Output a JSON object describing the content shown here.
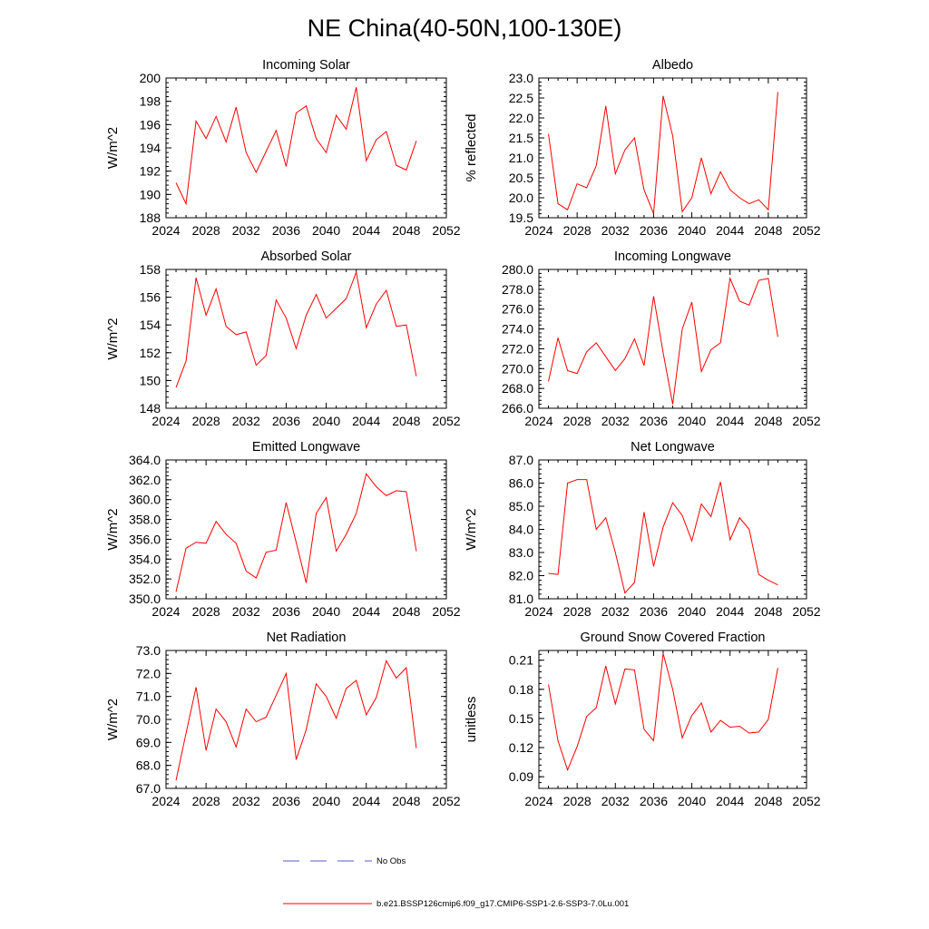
{
  "figure": {
    "title": "NE China(40-50N,100-130E)"
  },
  "chart_data": [
    {
      "type": "line",
      "title": "Incoming Solar",
      "ylabel": "W/m^2",
      "xlim": [
        2024,
        2052
      ],
      "ylim": [
        188,
        200
      ],
      "xticks": [
        "2024",
        "2028",
        "2032",
        "2036",
        "2040",
        "2044",
        "2048",
        "2052"
      ],
      "yticks": [
        "188",
        "190",
        "192",
        "194",
        "196",
        "198",
        "200"
      ],
      "series": [
        {
          "color": "#ff0000",
          "x": [
            2025,
            2026,
            2027,
            2028,
            2029,
            2030,
            2031,
            2032,
            2033,
            2034,
            2035,
            2036,
            2037,
            2038,
            2039,
            2040,
            2041,
            2042,
            2043,
            2044,
            2045,
            2046,
            2047,
            2048,
            2049
          ],
          "y": [
            191.0,
            189.2,
            196.3,
            194.8,
            196.7,
            194.5,
            197.5,
            193.6,
            191.9,
            193.7,
            195.5,
            192.4,
            197.0,
            197.6,
            194.8,
            193.6,
            196.8,
            195.6,
            199.2,
            192.9,
            194.7,
            195.4,
            192.5,
            192.1,
            194.6
          ]
        }
      ]
    },
    {
      "type": "line",
      "title": "Albedo",
      "ylabel": "% reflected",
      "xlim": [
        2024,
        2052
      ],
      "ylim": [
        19.5,
        23.0
      ],
      "xticks": [
        "2024",
        "2028",
        "2032",
        "2036",
        "2040",
        "2044",
        "2048",
        "2052"
      ],
      "yticks": [
        "19.5",
        "20.0",
        "20.5",
        "21.0",
        "21.5",
        "22.0",
        "22.5",
        "23.0"
      ],
      "series": [
        {
          "color": "#ff0000",
          "x": [
            2025,
            2026,
            2027,
            2028,
            2029,
            2030,
            2031,
            2032,
            2033,
            2034,
            2035,
            2036,
            2037,
            2038,
            2039,
            2040,
            2041,
            2042,
            2043,
            2044,
            2045,
            2046,
            2047,
            2048,
            2049
          ],
          "y": [
            21.6,
            19.85,
            19.7,
            20.35,
            20.25,
            20.8,
            22.3,
            20.6,
            21.2,
            21.5,
            20.2,
            19.6,
            22.55,
            21.55,
            19.65,
            20.0,
            21.0,
            20.1,
            20.65,
            20.2,
            20.0,
            19.85,
            19.95,
            19.7,
            22.65
          ]
        }
      ]
    },
    {
      "type": "line",
      "title": "Absorbed Solar",
      "ylabel": "W/m^2",
      "xlim": [
        2024,
        2052
      ],
      "ylim": [
        148,
        158
      ],
      "xticks": [
        "2024",
        "2028",
        "2032",
        "2036",
        "2040",
        "2044",
        "2048",
        "2052"
      ],
      "yticks": [
        "148",
        "150",
        "152",
        "154",
        "156",
        "158"
      ],
      "series": [
        {
          "color": "#ff0000",
          "x": [
            2025,
            2026,
            2027,
            2028,
            2029,
            2030,
            2031,
            2032,
            2033,
            2034,
            2035,
            2036,
            2037,
            2038,
            2039,
            2040,
            2041,
            2042,
            2043,
            2044,
            2045,
            2046,
            2047,
            2048,
            2049
          ],
          "y": [
            149.5,
            151.4,
            157.4,
            154.7,
            156.6,
            153.9,
            153.3,
            153.5,
            151.1,
            151.8,
            155.8,
            154.5,
            152.3,
            154.7,
            156.2,
            154.5,
            155.2,
            155.9,
            157.8,
            153.8,
            155.5,
            156.5,
            153.9,
            154.0,
            150.3
          ]
        }
      ]
    },
    {
      "type": "line",
      "title": "Incoming Longwave",
      "ylabel": "",
      "xlim": [
        2024,
        2052
      ],
      "ylim": [
        266.0,
        280.0
      ],
      "xticks": [
        "2024",
        "2028",
        "2032",
        "2036",
        "2040",
        "2044",
        "2048",
        "2052"
      ],
      "yticks": [
        "266.0",
        "268.0",
        "270.0",
        "272.0",
        "274.0",
        "276.0",
        "278.0",
        "280.0"
      ],
      "series": [
        {
          "color": "#ff0000",
          "x": [
            2025,
            2026,
            2027,
            2028,
            2029,
            2030,
            2031,
            2032,
            2033,
            2034,
            2035,
            2036,
            2037,
            2038,
            2039,
            2040,
            2041,
            2042,
            2043,
            2044,
            2045,
            2046,
            2047,
            2048,
            2049
          ],
          "y": [
            268.7,
            273.1,
            269.8,
            269.5,
            271.7,
            272.6,
            271.2,
            269.8,
            271.0,
            273.0,
            270.3,
            277.3,
            271.6,
            266.4,
            274.0,
            276.7,
            269.7,
            271.9,
            272.6,
            279.1,
            276.8,
            276.4,
            278.9,
            279.1,
            273.2
          ]
        }
      ]
    },
    {
      "type": "line",
      "title": "Emitted Longwave",
      "ylabel": "W/m^2",
      "xlim": [
        2024,
        2052
      ],
      "ylim": [
        350.0,
        364.0
      ],
      "xticks": [
        "2024",
        "2028",
        "2032",
        "2036",
        "2040",
        "2044",
        "2048",
        "2052"
      ],
      "yticks": [
        "350.0",
        "352.0",
        "354.0",
        "356.0",
        "358.0",
        "360.0",
        "362.0",
        "364.0"
      ],
      "series": [
        {
          "color": "#ff0000",
          "x": [
            2025,
            2026,
            2027,
            2028,
            2029,
            2030,
            2031,
            2032,
            2033,
            2034,
            2035,
            2036,
            2037,
            2038,
            2039,
            2040,
            2041,
            2042,
            2043,
            2044,
            2045,
            2046,
            2047,
            2048,
            2049
          ],
          "y": [
            350.7,
            355.1,
            355.7,
            355.6,
            357.8,
            356.5,
            355.6,
            352.8,
            352.1,
            354.7,
            354.9,
            359.7,
            355.7,
            351.6,
            358.6,
            360.2,
            354.8,
            356.5,
            358.6,
            362.6,
            361.3,
            360.4,
            360.9,
            360.8,
            354.8
          ]
        }
      ]
    },
    {
      "type": "line",
      "title": "Net Longwave",
      "ylabel": "W/m^2",
      "xlim": [
        2024,
        2052
      ],
      "ylim": [
        81.0,
        87.0
      ],
      "xticks": [
        "2024",
        "2028",
        "2032",
        "2036",
        "2040",
        "2044",
        "2048",
        "2052"
      ],
      "yticks": [
        "81.0",
        "82.0",
        "83.0",
        "84.0",
        "85.0",
        "86.0",
        "87.0"
      ],
      "series": [
        {
          "color": "#ff0000",
          "x": [
            2025,
            2026,
            2027,
            2028,
            2029,
            2030,
            2031,
            2032,
            2033,
            2034,
            2035,
            2036,
            2037,
            2038,
            2039,
            2040,
            2041,
            2042,
            2043,
            2044,
            2045,
            2046,
            2047,
            2048,
            2049
          ],
          "y": [
            82.1,
            82.05,
            86.0,
            86.15,
            86.15,
            84.0,
            84.5,
            83.0,
            81.25,
            81.7,
            84.75,
            82.4,
            84.1,
            85.15,
            84.6,
            83.5,
            85.1,
            84.55,
            86.05,
            83.55,
            84.5,
            84.0,
            82.05,
            81.8,
            81.6
          ]
        }
      ]
    },
    {
      "type": "line",
      "title": "Net Radiation",
      "ylabel": "W/m^2",
      "xlim": [
        2024,
        2052
      ],
      "ylim": [
        67.0,
        73.0
      ],
      "xticks": [
        "2024",
        "2028",
        "2032",
        "2036",
        "2040",
        "2044",
        "2048",
        "2052"
      ],
      "yticks": [
        "67.0",
        "68.0",
        "69.0",
        "70.0",
        "71.0",
        "72.0",
        "73.0"
      ],
      "series": [
        {
          "color": "#ff0000",
          "x": [
            2025,
            2026,
            2027,
            2028,
            2029,
            2030,
            2031,
            2032,
            2033,
            2034,
            2035,
            2036,
            2037,
            2038,
            2039,
            2040,
            2041,
            2042,
            2043,
            2044,
            2045,
            2046,
            2047,
            2048,
            2049
          ],
          "y": [
            67.35,
            69.4,
            71.4,
            68.65,
            70.45,
            69.9,
            68.8,
            70.45,
            69.9,
            70.1,
            71.05,
            72.0,
            68.25,
            69.55,
            71.55,
            71.0,
            70.05,
            71.35,
            71.7,
            70.2,
            70.95,
            72.55,
            71.8,
            72.25,
            68.75
          ]
        }
      ]
    },
    {
      "type": "line",
      "title": "Ground Snow Covered Fraction",
      "ylabel": "unitless",
      "xlim": [
        2024,
        2052
      ],
      "ylim": [
        0.078,
        0.22
      ],
      "xticks": [
        "2024",
        "2028",
        "2032",
        "2036",
        "2040",
        "2044",
        "2048",
        "2052"
      ],
      "yticks": [
        "0.09",
        "0.12",
        "0.15",
        "0.18",
        "0.21"
      ],
      "ytick_values": [
        0.09,
        0.12,
        0.15,
        0.18,
        0.21
      ],
      "series": [
        {
          "color": "#ff0000",
          "x": [
            2025,
            2026,
            2027,
            2028,
            2029,
            2030,
            2031,
            2032,
            2033,
            2034,
            2035,
            2036,
            2037,
            2038,
            2039,
            2040,
            2041,
            2042,
            2043,
            2044,
            2045,
            2046,
            2047,
            2048,
            2049
          ],
          "y": [
            0.185,
            0.127,
            0.097,
            0.121,
            0.152,
            0.161,
            0.204,
            0.165,
            0.201,
            0.2,
            0.139,
            0.127,
            0.217,
            0.18,
            0.13,
            0.153,
            0.166,
            0.136,
            0.148,
            0.141,
            0.142,
            0.135,
            0.136,
            0.149,
            0.202
          ]
        }
      ]
    }
  ],
  "legend": [
    {
      "label": "No Obs",
      "color": "#5a5acd",
      "style": "dashed"
    },
    {
      "label": "b.e21.BSSP126cmip6.f09_g17.CMIP6-SSP1-2.6-SSP3-7.0Lu.001",
      "color": "#ff0000",
      "style": "solid"
    }
  ]
}
